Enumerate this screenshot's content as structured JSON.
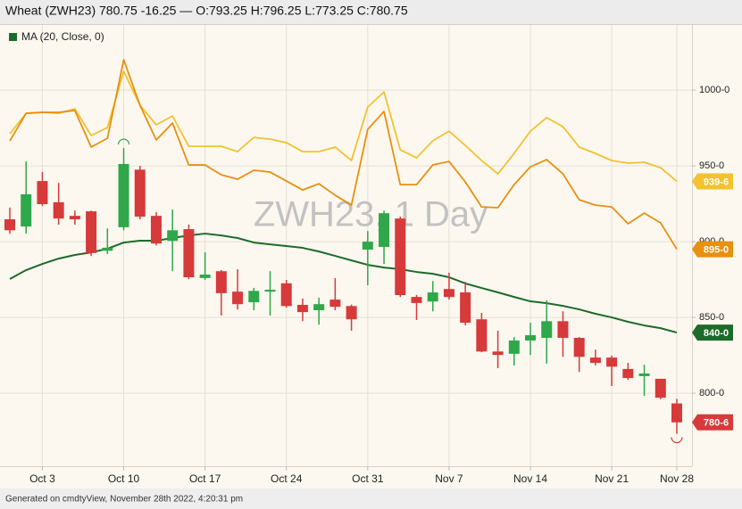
{
  "chart_data": {
    "type": "candlestick",
    "title": "Wheat (ZWH23) 780.75 -16.25 — O:793.25 H:796.25 L:773.25 C:780.75",
    "watermark": "ZWH23, 1 Day",
    "footer": "Generated on cmdtyView, November 28th 2022, 4:20:31 pm",
    "categories": [
      null,
      null,
      "Oct 3",
      null,
      null,
      null,
      null,
      "Oct 10",
      null,
      null,
      null,
      null,
      "Oct 17",
      null,
      null,
      null,
      null,
      "Oct 24",
      null,
      null,
      null,
      null,
      "Oct 31",
      null,
      null,
      null,
      null,
      "Nov 7",
      null,
      null,
      null,
      null,
      "Nov 14",
      null,
      null,
      null,
      null,
      "Nov 21",
      null,
      null,
      null,
      "Nov 28"
    ],
    "open": [
      914.75,
      910,
      940,
      926,
      917,
      920,
      894,
      909.5,
      947.5,
      917,
      900.5,
      908.25,
      876,
      880.5,
      867,
      860,
      867,
      872.5,
      858.25,
      854.75,
      861.75,
      857.5,
      894.75,
      896.5,
      915.25,
      863.5,
      860.5,
      868.75,
      866.5,
      848.75,
      827.5,
      826,
      834.75,
      836.5,
      847.5,
      836.5,
      823.5,
      823.5,
      816,
      811.25,
      809.5,
      793.25
    ],
    "high": [
      922.5,
      953,
      946,
      938.75,
      920.5,
      920.5,
      908.75,
      961.75,
      950,
      919.5,
      921.25,
      911.25,
      893,
      881.25,
      881.75,
      869.5,
      880.5,
      874.75,
      862.5,
      863,
      876,
      858.5,
      907,
      920.5,
      916.5,
      864.75,
      874,
      879.5,
      873.5,
      853,
      841.25,
      837,
      846.5,
      861.25,
      854,
      837,
      828.75,
      824.75,
      820,
      818.75,
      809.5,
      796.25
    ],
    "low": [
      905.25,
      905.25,
      923.5,
      911.25,
      911.25,
      890.5,
      891.75,
      907.5,
      914.75,
      897.5,
      880.5,
      875.25,
      874.75,
      851.25,
      855.25,
      854.75,
      851.25,
      856.5,
      847.5,
      845.25,
      854.75,
      841.25,
      871.25,
      885.25,
      863.5,
      848.25,
      854,
      861.75,
      844.75,
      827,
      816.5,
      818.25,
      825.25,
      819.5,
      824,
      814,
      818.25,
      804.75,
      808.75,
      798.25,
      796,
      773.25
    ],
    "close": [
      907.5,
      931.25,
      924.75,
      915.25,
      914.75,
      892.5,
      896,
      951.25,
      916.5,
      898.75,
      907.5,
      876.5,
      878.25,
      866,
      858.75,
      867.5,
      868.25,
      857.5,
      853.5,
      858.75,
      857,
      848.75,
      900,
      918.75,
      864.75,
      859.5,
      866.5,
      863.5,
      846.5,
      827.5,
      825.25,
      834.75,
      838.25,
      847.5,
      836.5,
      824,
      820,
      817.5,
      810,
      813,
      797,
      780.75
    ],
    "close_value_labels": [
      null,
      null,
      null,
      null,
      null,
      null,
      null,
      null,
      null,
      null,
      null,
      null,
      null,
      null,
      null,
      null,
      null,
      null,
      null,
      null,
      null,
      null,
      null,
      null,
      null,
      null,
      null,
      null,
      null,
      null,
      null,
      null,
      null,
      null,
      null,
      null,
      null,
      null,
      null,
      null,
      null,
      "780-6"
    ],
    "up_color": "#2ea84a",
    "down_color": "#d63a3a",
    "series": [
      {
        "name": "MA (20, Close, 0)",
        "color": "#1d6b2a",
        "values": [
          875.3,
          881.2,
          885.3,
          888.8,
          891.2,
          892.9,
          895.3,
          899.4,
          900.6,
          900.6,
          902.4,
          904.1,
          905.3,
          904.1,
          902.4,
          899.4,
          898.2,
          897.1,
          895.9,
          893.5,
          890.6,
          887.6,
          884.7,
          882.9,
          881.8,
          880,
          878.8,
          876.5,
          872.4,
          869.4,
          866.5,
          863.5,
          860.6,
          859.4,
          857.6,
          855.3,
          852.4,
          850,
          847.1,
          844.7,
          842.9,
          840
        ],
        "value_labels": [
          null,
          null,
          null,
          null,
          null,
          null,
          null,
          null,
          null,
          null,
          null,
          null,
          null,
          null,
          null,
          null,
          null,
          null,
          null,
          null,
          null,
          null,
          null,
          null,
          null,
          null,
          null,
          null,
          null,
          null,
          null,
          null,
          null,
          null,
          null,
          null,
          null,
          null,
          null,
          null,
          null,
          "840-0"
        ]
      },
      {
        "color": "#f2c230",
        "values": [
          971.2,
          984.7,
          985.3,
          984.7,
          987.6,
          970,
          975.3,
          1012.4,
          990,
          977.1,
          982.9,
          962.9,
          962.9,
          962.9,
          959.4,
          968.8,
          967.6,
          965.3,
          959.4,
          959.4,
          962.4,
          953.5,
          988.8,
          998.8,
          960.6,
          955.3,
          966.5,
          972.9,
          963.5,
          953.5,
          944.7,
          958.2,
          972.9,
          981.8,
          975.9,
          962.4,
          958.2,
          953.5,
          951.8,
          952.4,
          948.8,
          939.75
        ],
        "value_labels": [
          null,
          null,
          null,
          null,
          null,
          null,
          null,
          null,
          null,
          null,
          null,
          null,
          null,
          null,
          null,
          null,
          null,
          null,
          null,
          null,
          null,
          null,
          null,
          null,
          null,
          null,
          null,
          null,
          null,
          null,
          null,
          null,
          null,
          null,
          null,
          null,
          null,
          null,
          null,
          null,
          null,
          "939-6"
        ]
      },
      {
        "color": "#e8900f",
        "values": [
          966.5,
          984.7,
          985.3,
          985.3,
          986.5,
          962.4,
          968.2,
          1020,
          990,
          967.1,
          978.2,
          950.6,
          950.6,
          944.1,
          941.2,
          947.1,
          945.9,
          940,
          934.1,
          938.2,
          930.6,
          924.1,
          974.1,
          985.9,
          937.6,
          937.6,
          950.6,
          952.9,
          939.4,
          922.9,
          922.4,
          937.6,
          949.4,
          954.1,
          944.7,
          927.6,
          924.1,
          922.9,
          911.8,
          918.8,
          912.4,
          895
        ],
        "value_labels": [
          null,
          null,
          null,
          null,
          null,
          null,
          null,
          null,
          null,
          null,
          null,
          null,
          null,
          null,
          null,
          null,
          null,
          null,
          null,
          null,
          null,
          null,
          null,
          null,
          null,
          null,
          null,
          null,
          null,
          null,
          null,
          null,
          null,
          null,
          null,
          null,
          null,
          null,
          null,
          null,
          null,
          "895-0"
        ]
      }
    ],
    "ylim": [
      752.4,
      1041.8
    ],
    "yticks": [
      {
        "value": 800,
        "label": "800-0"
      },
      {
        "value": 850,
        "label": "850-0"
      },
      {
        "value": 900,
        "label": "900-0"
      },
      {
        "value": 950,
        "label": "950-0"
      },
      {
        "value": 1000,
        "label": "1000-0"
      }
    ],
    "grid": true
  }
}
